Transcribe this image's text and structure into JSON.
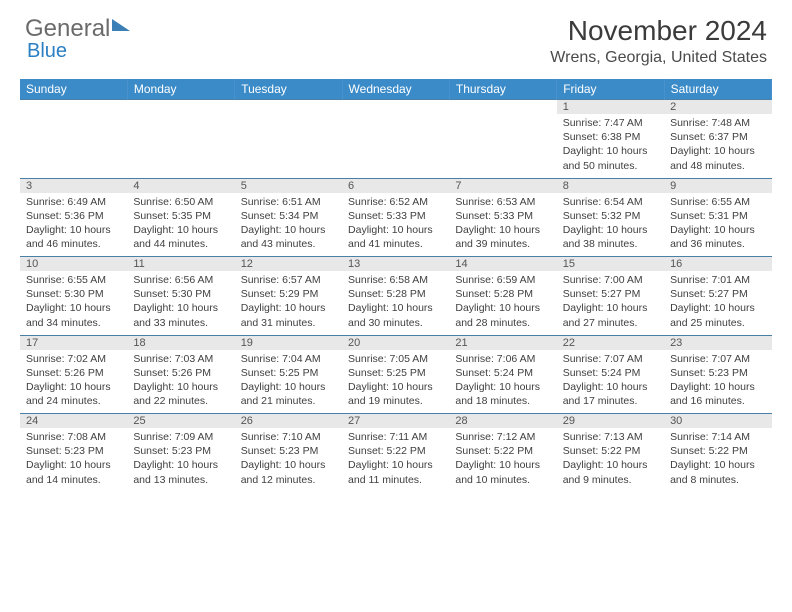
{
  "logo": {
    "text1": "General",
    "text2": "Blue"
  },
  "title": "November 2024",
  "location": "Wrens, Georgia, United States",
  "colors": {
    "header_bg": "#3b8bc9",
    "daynum_bg": "#e8e8e8",
    "border": "#4a7fa8",
    "logo_blue": "#2b7fc3",
    "text": "#404040"
  },
  "weekdays": [
    "Sunday",
    "Monday",
    "Tuesday",
    "Wednesday",
    "Thursday",
    "Friday",
    "Saturday"
  ],
  "weeks": [
    [
      null,
      null,
      null,
      null,
      null,
      {
        "d": "1",
        "sr": "7:47 AM",
        "ss": "6:38 PM",
        "dl": "10 hours and 50 minutes."
      },
      {
        "d": "2",
        "sr": "7:48 AM",
        "ss": "6:37 PM",
        "dl": "10 hours and 48 minutes."
      }
    ],
    [
      {
        "d": "3",
        "sr": "6:49 AM",
        "ss": "5:36 PM",
        "dl": "10 hours and 46 minutes."
      },
      {
        "d": "4",
        "sr": "6:50 AM",
        "ss": "5:35 PM",
        "dl": "10 hours and 44 minutes."
      },
      {
        "d": "5",
        "sr": "6:51 AM",
        "ss": "5:34 PM",
        "dl": "10 hours and 43 minutes."
      },
      {
        "d": "6",
        "sr": "6:52 AM",
        "ss": "5:33 PM",
        "dl": "10 hours and 41 minutes."
      },
      {
        "d": "7",
        "sr": "6:53 AM",
        "ss": "5:33 PM",
        "dl": "10 hours and 39 minutes."
      },
      {
        "d": "8",
        "sr": "6:54 AM",
        "ss": "5:32 PM",
        "dl": "10 hours and 38 minutes."
      },
      {
        "d": "9",
        "sr": "6:55 AM",
        "ss": "5:31 PM",
        "dl": "10 hours and 36 minutes."
      }
    ],
    [
      {
        "d": "10",
        "sr": "6:55 AM",
        "ss": "5:30 PM",
        "dl": "10 hours and 34 minutes."
      },
      {
        "d": "11",
        "sr": "6:56 AM",
        "ss": "5:30 PM",
        "dl": "10 hours and 33 minutes."
      },
      {
        "d": "12",
        "sr": "6:57 AM",
        "ss": "5:29 PM",
        "dl": "10 hours and 31 minutes."
      },
      {
        "d": "13",
        "sr": "6:58 AM",
        "ss": "5:28 PM",
        "dl": "10 hours and 30 minutes."
      },
      {
        "d": "14",
        "sr": "6:59 AM",
        "ss": "5:28 PM",
        "dl": "10 hours and 28 minutes."
      },
      {
        "d": "15",
        "sr": "7:00 AM",
        "ss": "5:27 PM",
        "dl": "10 hours and 27 minutes."
      },
      {
        "d": "16",
        "sr": "7:01 AM",
        "ss": "5:27 PM",
        "dl": "10 hours and 25 minutes."
      }
    ],
    [
      {
        "d": "17",
        "sr": "7:02 AM",
        "ss": "5:26 PM",
        "dl": "10 hours and 24 minutes."
      },
      {
        "d": "18",
        "sr": "7:03 AM",
        "ss": "5:26 PM",
        "dl": "10 hours and 22 minutes."
      },
      {
        "d": "19",
        "sr": "7:04 AM",
        "ss": "5:25 PM",
        "dl": "10 hours and 21 minutes."
      },
      {
        "d": "20",
        "sr": "7:05 AM",
        "ss": "5:25 PM",
        "dl": "10 hours and 19 minutes."
      },
      {
        "d": "21",
        "sr": "7:06 AM",
        "ss": "5:24 PM",
        "dl": "10 hours and 18 minutes."
      },
      {
        "d": "22",
        "sr": "7:07 AM",
        "ss": "5:24 PM",
        "dl": "10 hours and 17 minutes."
      },
      {
        "d": "23",
        "sr": "7:07 AM",
        "ss": "5:23 PM",
        "dl": "10 hours and 16 minutes."
      }
    ],
    [
      {
        "d": "24",
        "sr": "7:08 AM",
        "ss": "5:23 PM",
        "dl": "10 hours and 14 minutes."
      },
      {
        "d": "25",
        "sr": "7:09 AM",
        "ss": "5:23 PM",
        "dl": "10 hours and 13 minutes."
      },
      {
        "d": "26",
        "sr": "7:10 AM",
        "ss": "5:23 PM",
        "dl": "10 hours and 12 minutes."
      },
      {
        "d": "27",
        "sr": "7:11 AM",
        "ss": "5:22 PM",
        "dl": "10 hours and 11 minutes."
      },
      {
        "d": "28",
        "sr": "7:12 AM",
        "ss": "5:22 PM",
        "dl": "10 hours and 10 minutes."
      },
      {
        "d": "29",
        "sr": "7:13 AM",
        "ss": "5:22 PM",
        "dl": "10 hours and 9 minutes."
      },
      {
        "d": "30",
        "sr": "7:14 AM",
        "ss": "5:22 PM",
        "dl": "10 hours and 8 minutes."
      }
    ]
  ],
  "labels": {
    "sunrise": "Sunrise: ",
    "sunset": "Sunset: ",
    "daylight": "Daylight: "
  }
}
